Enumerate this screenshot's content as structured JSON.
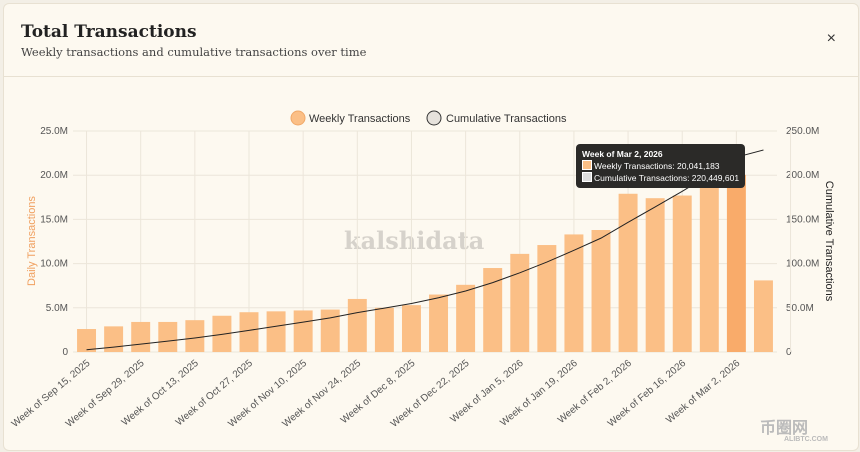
{
  "header": {
    "title": "Total Transactions",
    "subtitle": "Weekly transactions and cumulative transactions over time",
    "close_icon": "×"
  },
  "watermark": "kalshidata",
  "site_logo": {
    "name": "币圈网",
    "url_text": "ALIBTC.COM"
  },
  "tooltip": {
    "title": "Week of Mar 2, 2026",
    "weekly": "Weekly Transactions: 20,041,183",
    "cumulative": "Cumulative Transactions: 220,449,601"
  },
  "chart_data": {
    "type": "bar+line",
    "title": "Total Transactions",
    "legend": [
      "Weekly Transactions",
      "Cumulative Transactions"
    ],
    "legend_position": "top",
    "ylabel_left": "Daily Transactions",
    "ylabel_right": "Cumulative Transactions",
    "ylim_left": [
      0,
      25
    ],
    "ylim_right": [
      0,
      250
    ],
    "yticks_left": [
      "0",
      "5.0M",
      "10.0M",
      "15.0M",
      "20.0M",
      "25.0M"
    ],
    "yticks_right": [
      "0",
      "50.0M",
      "100.0M",
      "150.0M",
      "200.0M",
      "250.0M"
    ],
    "xtick_labels": [
      "Week of Sep 15, 2025",
      "Week of Sep 29, 2025",
      "Week of Oct 13, 2025",
      "Week of Oct 27, 2025",
      "Week of Nov 10, 2025",
      "Week of Nov 24, 2025",
      "Week of Dec 8, 2025",
      "Week of Dec 22, 2025",
      "Week of Jan 5, 2026",
      "Week of Jan 19, 2026",
      "Week of Feb 2, 2026",
      "Week of Feb 16, 2026",
      "Week of Mar 2, 2026"
    ],
    "units": "millions",
    "weekly": [
      2.6,
      2.9,
      3.4,
      3.4,
      3.6,
      4.1,
      4.5,
      4.6,
      4.7,
      4.8,
      6.0,
      5.0,
      5.3,
      6.5,
      7.6,
      9.5,
      11.1,
      12.1,
      13.3,
      13.8,
      17.9,
      17.4,
      17.7,
      19.2,
      20.04,
      8.1
    ],
    "cumulative": [
      2.6,
      5.5,
      8.9,
      12.3,
      15.9,
      20.0,
      24.5,
      29.1,
      33.8,
      38.6,
      44.6,
      49.6,
      54.9,
      61.4,
      69.0,
      78.5,
      89.6,
      101.7,
      115.0,
      128.8,
      146.7,
      164.1,
      181.8,
      200.4,
      220.4,
      228.5
    ],
    "colors": {
      "bar": "#fbbf86",
      "bar_highlight": "#f9ab6a",
      "line": "#222222",
      "left_axis_label": "#f0a060"
    },
    "grid": true
  }
}
